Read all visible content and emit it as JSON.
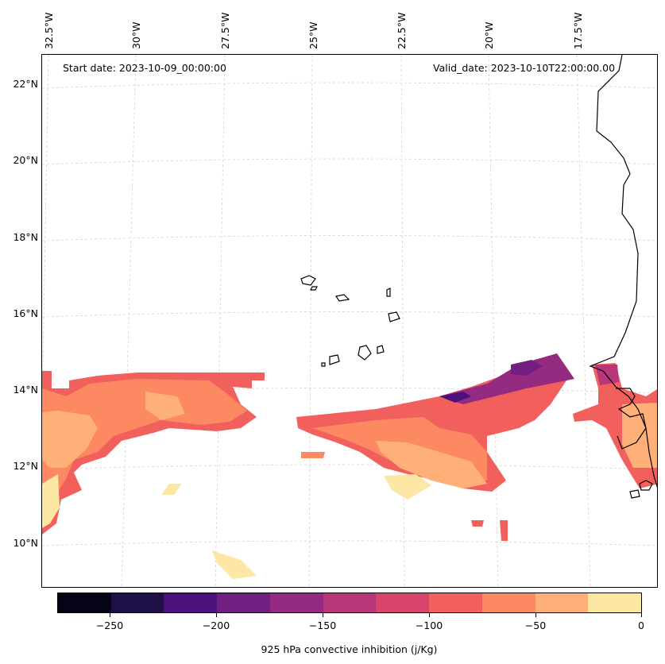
{
  "header": {
    "start_date": "Start date: 2023-10-09_00:00:00",
    "valid_date": "Valid_date: 2023-10-10T22:00:00.00"
  },
  "longitude_labels": [
    "32.5°W",
    "30°W",
    "27.5°W",
    "25°W",
    "22.5°W",
    "20°W",
    "17.5°W"
  ],
  "latitude_labels": [
    "22°N",
    "20°N",
    "18°N",
    "16°N",
    "14°N",
    "12°N",
    "10°N"
  ],
  "colorbar": {
    "title": "925 hPa convective inhibition (j/Kg)",
    "tick_labels": [
      "−250",
      "−200",
      "−150",
      "−100",
      "−50",
      "0"
    ],
    "colors": [
      "#050416",
      "#1f1147",
      "#4c117a",
      "#711f81",
      "#942b80",
      "#b73779",
      "#d8456c",
      "#f1605d",
      "#fc8961",
      "#feb078",
      "#fde7a4"
    ]
  }
}
